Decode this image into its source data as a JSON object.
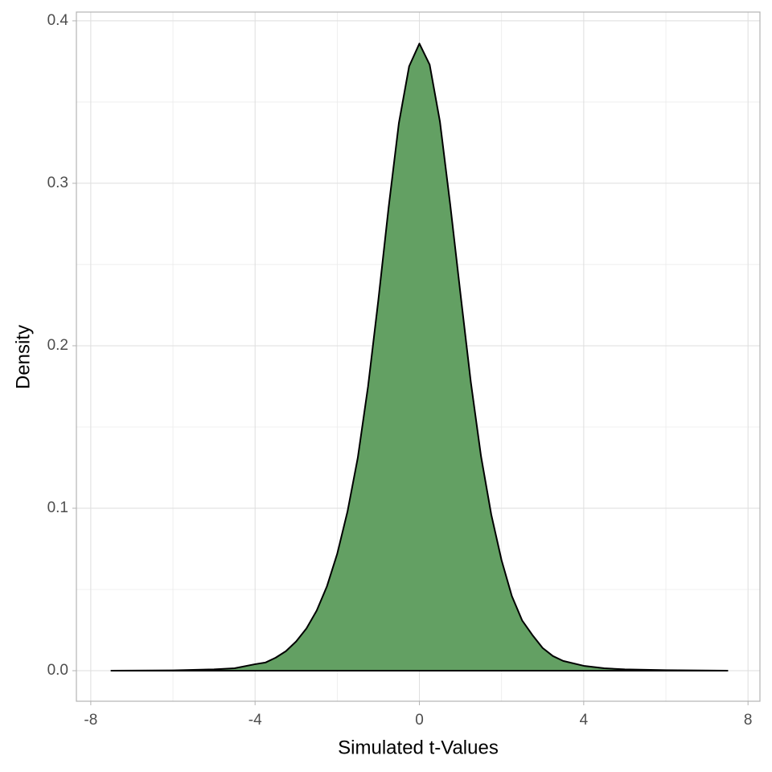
{
  "chart_data": {
    "type": "area",
    "x_label": "Simulated t-Values",
    "y_label": "Density",
    "x": [
      -7.5,
      -6,
      -5,
      -4.5,
      -4,
      -3.75,
      -3.5,
      -3.25,
      -3,
      -2.75,
      -2.5,
      -2.25,
      -2,
      -1.75,
      -1.5,
      -1.25,
      -1,
      -0.75,
      -0.5,
      -0.25,
      0,
      0.25,
      0.5,
      0.75,
      1,
      1.25,
      1.5,
      1.75,
      2,
      2.25,
      2.5,
      2.75,
      3,
      3.25,
      3.5,
      4,
      4.5,
      5,
      6,
      7.5
    ],
    "values": [
      0,
      0.0002,
      0.0008,
      0.0015,
      0.004,
      0.005,
      0.008,
      0.012,
      0.018,
      0.026,
      0.037,
      0.052,
      0.072,
      0.098,
      0.131,
      0.175,
      0.228,
      0.285,
      0.337,
      0.372,
      0.386,
      0.373,
      0.338,
      0.287,
      0.232,
      0.178,
      0.132,
      0.096,
      0.068,
      0.046,
      0.031,
      0.022,
      0.014,
      0.009,
      0.006,
      0.003,
      0.0015,
      0.0008,
      0.0003,
      0
    ],
    "color": "#63a063",
    "line_color": "#000000",
    "xlim": [
      -8.35,
      8.29
    ],
    "ylim": [
      -0.0188,
      0.4054
    ],
    "xticks": [
      -8,
      -4,
      0,
      4,
      8
    ],
    "yticks": [
      {
        "value": 0,
        "label": "0.0"
      },
      0.1,
      0.2,
      0.3,
      0.4
    ],
    "grid": true
  }
}
